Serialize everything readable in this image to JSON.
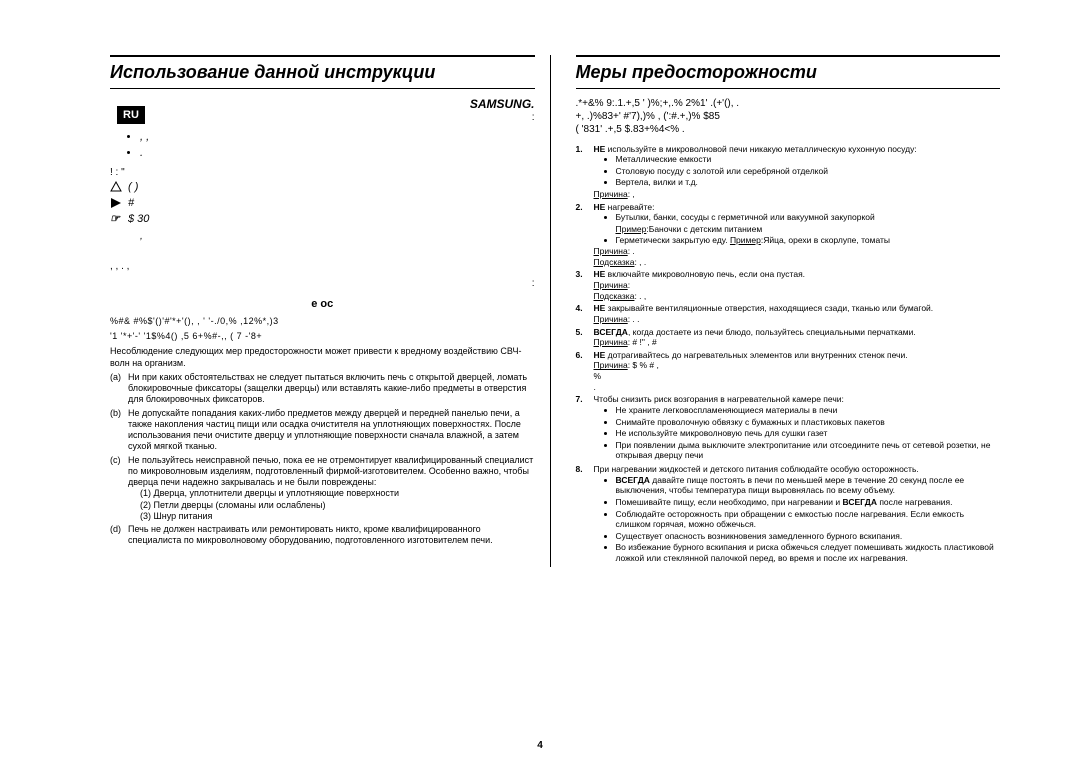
{
  "lang_badge": "RU",
  "page_number": "4",
  "left": {
    "title": "Использование данной инструкции",
    "brand": "SAMSUNG.",
    "intro_line1": "",
    "intro_suffix": ":",
    "bullets": [
      "",
      ",                                                            ,",
      "                                                                                                ."
    ],
    "pre_symbols": "!                          :  \"",
    "symbol_rows": [
      "                                (                                                          )",
      "#",
      "$                30"
    ],
    "after_symbols": ",",
    "mid_text": ",                       ,                   .           ,",
    "mid_text2": ":",
    "subsection_title": "e oc",
    "garbled1": "%#&    #%$'()'#'*+'(),              , ' '-./0,%        ,12%*,)3",
    "garbled2": "'1 '*+'-'            '1$%4() ,5         6+%#-,,    ( 7   -'8+",
    "warn": "Несоблюдение следующих мер предосторожности может привести к вредному воздействию СВЧ-волн на организм.",
    "lettered": [
      {
        "l": "(a)",
        "t": "Ни при каких обстоятельствах не следует пытаться включить печь с открытой дверцей, ломать блокировочные фиксаторы (защелки дверцы) или вставлять какие-либо предметы в отверстия для блокировочных фиксаторов."
      },
      {
        "l": "(b)",
        "t": "Не допускайте попадания каких-либо предметов между дверцей и передней панелью печи, а также накопления частиц пищи или осадка очистителя на уплотняющих поверхностях. После использования печи очистите дверцу и уплотняющие поверхности сначала влажной, а затем сухой мягкой тканью."
      },
      {
        "l": "(c)",
        "t": "Не пользуйтесь неисправной печью, пока ее не отремонтирует квалифицированный специалист по микроволновым изделиям, подготовленный фирмой-изготовителем. Особенно важно, чтобы дверца печи надежно закрывалась и не были повреждены:",
        "subs": [
          "(1) Дверца, уплотнители дверцы и уплотняющие поверхности",
          "(2) Петли дверцы (сломаны или ослаблены)",
          "(3) Шнур питания"
        ]
      },
      {
        "l": "(d)",
        "t": "Печь не должен настраивать или ремонтировать никто, кроме квалифицированного специалиста по микроволновому оборудованию, подготовленного изготовителем печи."
      }
    ]
  },
  "right": {
    "title": "Меры предосторожности",
    "intro_garbled": ".*+&%     9:.1.+,5         '  )%;+,.%    2%1' .(+'(),      .\n+, .)%83+'           #'7),)%     ,   (':#.+,)%      $85\n(  '831' .+,5            $.83+%4<%       .",
    "items": [
      {
        "n": "1.",
        "lead": "НЕ ",
        "t": "используйте в микроволновой печи никакую металлическую кухонную посуду:",
        "bullets": [
          "Металлические емкости",
          "Столовую посуду с золотой или серебряной отделкой",
          "Вертела, вилки и т.д."
        ],
        "reason": "Причина:                                                           ,"
      },
      {
        "n": "2.",
        "lead": "НЕ ",
        "t": "нагревайте:",
        "bullets": [
          "Бутылки, банки, сосуды с герметичной или вакуумной закупоркой"
        ],
        "example": "Пример:Баночки с детским питанием",
        "bullets2": [
          "Герметически закрытую еду.  Пример:Яйца, орехи в скорлупе, томаты"
        ],
        "reason": "Причина:                                                                            .",
        "hint": "Подсказка:                                                          ,                    ."
      },
      {
        "n": "3.",
        "lead": "НЕ ",
        "t": "включайте микроволновую печь, если она пустая.",
        "reason": "Причина:",
        "hint": "Подсказка:                                                                           .                                      ,"
      },
      {
        "n": "4.",
        "lead": "НЕ ",
        "t": "закрывайте вентиляционные отверстия, находящиеся сзади, тканью или бумагой.",
        "reason": "Причина:                                   .                                                    ."
      },
      {
        "n": "5.",
        "lead": "ВСЕГДА",
        "t": ", когда достаете из печи блюдо, пользуйтесь специальными перчатками.",
        "reason": "Причина:                                                  #                   !\"   ,           #"
      },
      {
        "n": "6.",
        "lead": "НЕ ",
        "t": "дотрагивайтесь до нагревательных элементов или внутренних стенок печи.",
        "reason": "Причина:   $           %                             #                          ,\n                                                 %\n                                                                                                         ."
      },
      {
        "n": "7.",
        "t": "Чтобы снизить риск возгорания в нагревательной камере печи:",
        "bullets": [
          "Не храните легковоспламеняющиеся материалы в печи",
          "Снимайте проволочную обвязку с бумажных и пластиковых пакетов",
          "Не используйте микроволновую печь для сушки газет",
          "При появлении дыма выключите электропитание или отсоедините печь от сетевой розетки, не открывая дверцу печи"
        ]
      },
      {
        "n": "8.",
        "t": "При нагревании жидкостей и детского питания соблюдайте особую осторожность.",
        "bullets": [
          "ВСЕГДА давайте пище постоять в печи по меньшей мере в течение 20 секунд после ее выключения, чтобы температура пищи выровнялась по всему объему.",
          "Помешивайте пищу, если необходимо, при нагревании и ВСЕГДА после нагревания.",
          "Соблюдайте осторожность при обращении с емкостью после нагревания. Если емкость слишком горячая, можно обжечься.",
          "Существует опасность возникновения замедленного бурного вскипания.",
          "Во избежание бурного вскипания и риска обжечься следует помешивать жидкость пластиковой ложкой или стеклянной палочкой перед, во время и после их нагревания."
        ]
      }
    ]
  }
}
